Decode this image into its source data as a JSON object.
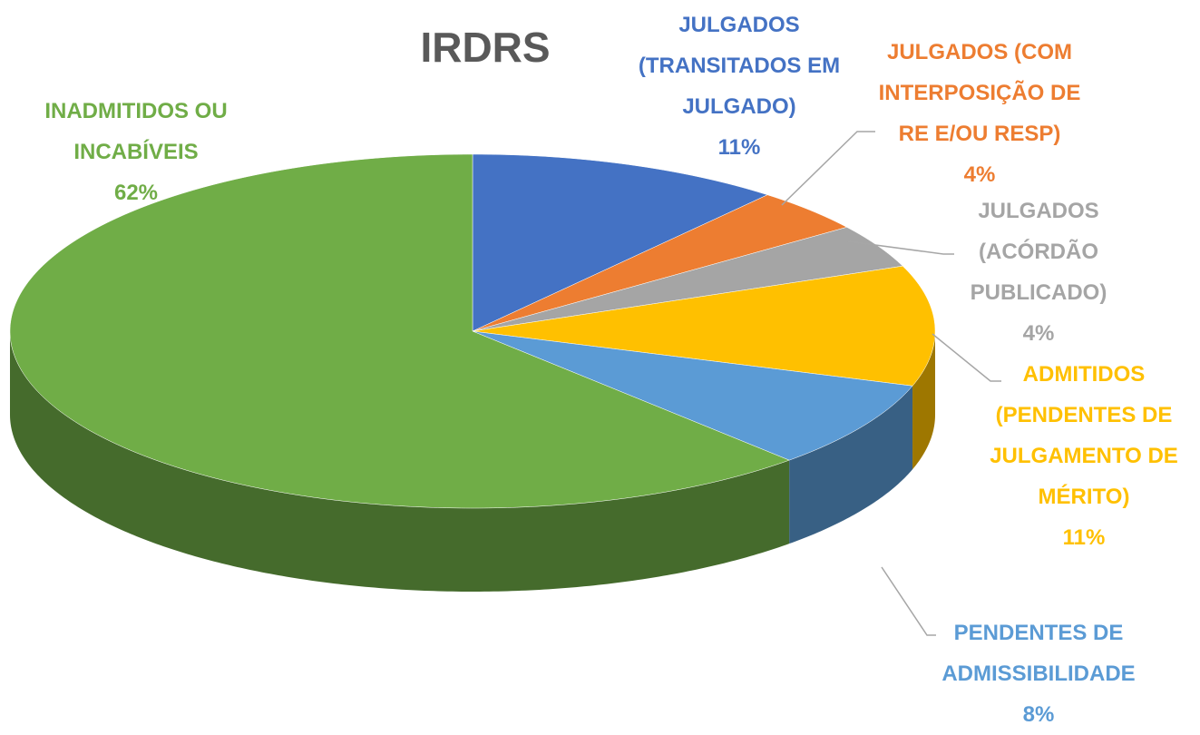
{
  "chart_data": {
    "type": "pie3d",
    "title": "IRDRS",
    "categories": [
      "JULGADOS (TRANSITADOS EM JULGADO)",
      "JULGADOS (COM INTERPOSIÇÃO DE RE E/OU RESP)",
      "JULGADOS (ACÓRDÃO PUBLICADO)",
      "ADMITIDOS (PENDENTES DE JULGAMENTO DE MÉRITO)",
      "PENDENTES DE ADMISSIBILIDADE",
      "INADMITIDOS OU INCABÍVEIS"
    ],
    "values": [
      11,
      4,
      4,
      11,
      8,
      62
    ],
    "value_labels": [
      "11%",
      "4%",
      "4%",
      "11%",
      "8%",
      "62%"
    ],
    "colors": [
      "#4472c4",
      "#ed7d31",
      "#a5a5a5",
      "#ffc000",
      "#5b9bd5",
      "#70ad47"
    ]
  }
}
